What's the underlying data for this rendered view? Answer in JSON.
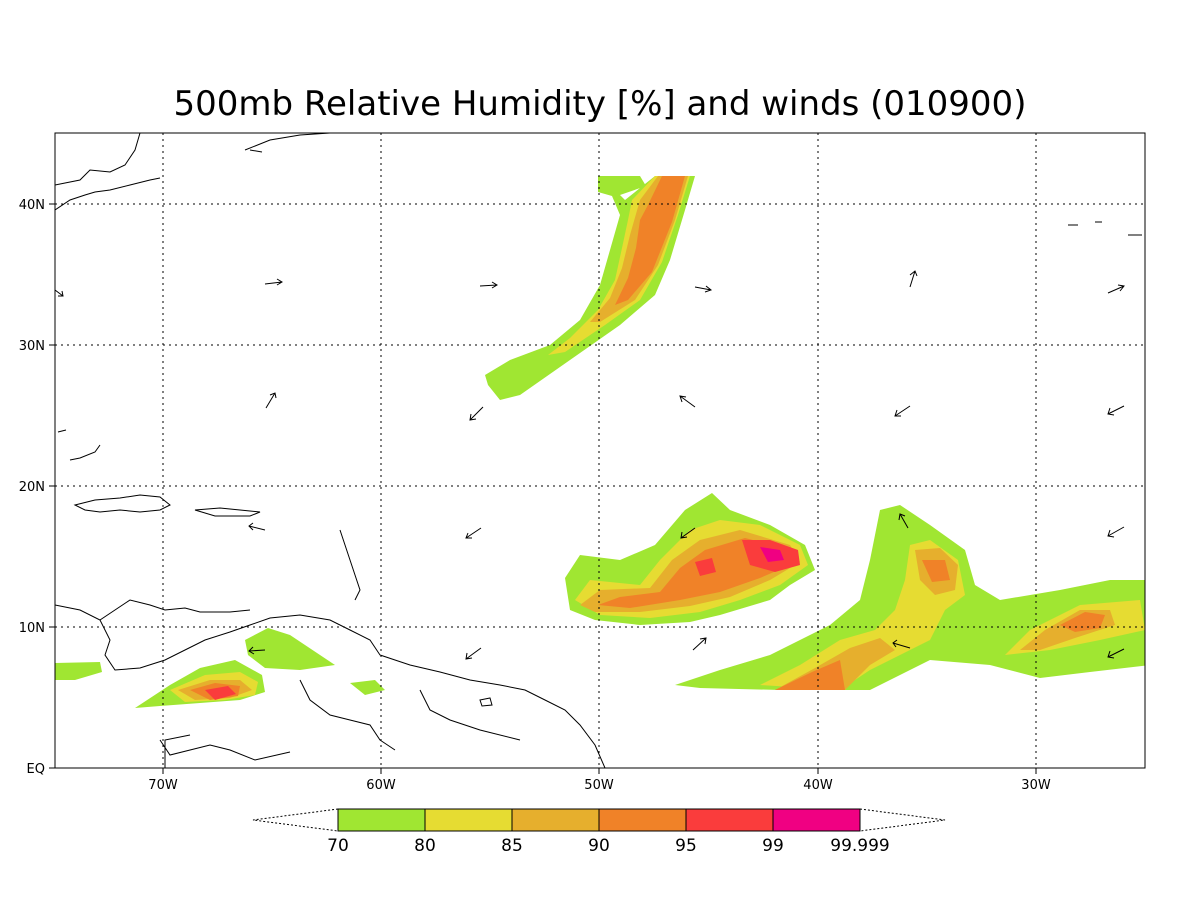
{
  "title": "500mb Relative Humidity [%] and winds (010900)",
  "map": {
    "lon_range_deg_west": [
      75,
      25
    ],
    "lat_range_deg_north": [
      0,
      45
    ],
    "lon_labels": [
      "70W",
      "60W",
      "50W",
      "40W",
      "30W"
    ],
    "lat_labels": [
      "EQ",
      "10N",
      "20N",
      "30N",
      "40N"
    ],
    "gridlines": "dotted"
  },
  "colorbar": {
    "levels": [
      "70",
      "80",
      "85",
      "90",
      "95",
      "99",
      "99.999"
    ],
    "colors": [
      "#a0e632",
      "#e6dc32",
      "#e6af2d",
      "#f08228",
      "#fa3c3c",
      "#f00082"
    ],
    "extends": "both"
  },
  "features": {
    "humidity_bands": [
      "70-80",
      "80-85",
      "85-90",
      "90-95",
      "95-99",
      "99-99.999"
    ],
    "wind_vectors": "sparse arrows"
  }
}
